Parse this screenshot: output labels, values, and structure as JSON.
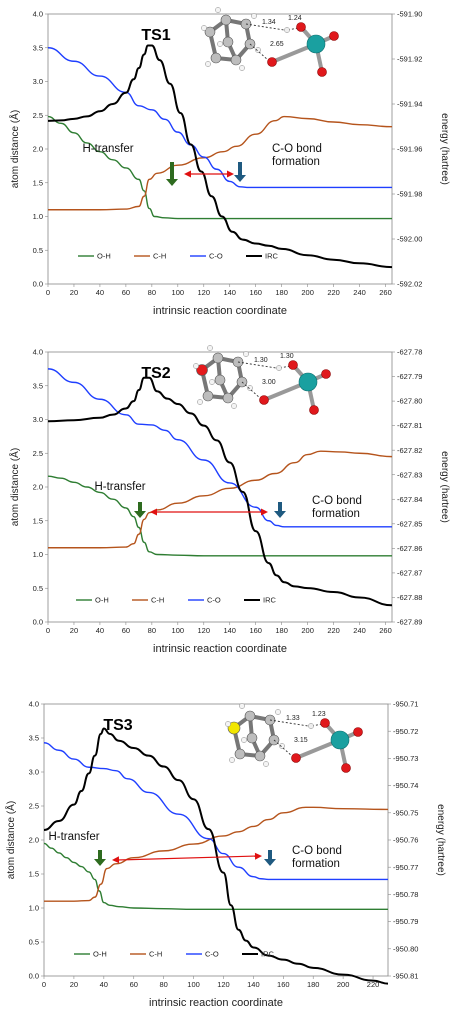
{
  "chart_data": [
    {
      "type": "line",
      "title": "TS1",
      "xlabel": "intrinsic reaction coordinate",
      "ylabel_left": "atom distance (Å)",
      "ylabel_right": "energy (hartree)",
      "xlim": [
        0,
        265
      ],
      "xticks": [
        "0",
        "20",
        "40",
        "60",
        "80",
        "100",
        "120",
        "140",
        "160",
        "180",
        "200",
        "220",
        "240",
        "260"
      ],
      "ylim_left": [
        0.0,
        4.0
      ],
      "yticks_left": [
        "0.0",
        "0.5",
        "1.0",
        "1.5",
        "2.0",
        "2.5",
        "3.0",
        "3.5",
        "4.0"
      ],
      "ylim_right": [
        -592.02,
        -591.9
      ],
      "yticks_right": [
        "-591.90",
        "-591.92",
        "-591.94",
        "-591.96",
        "-591.98",
        "-592.00",
        "-592.02"
      ],
      "annotations": {
        "left": "H-transfer",
        "right_line1": "C-O bond",
        "right_line2": "formation"
      },
      "molecule_labels": [
        "1.34",
        "1.24",
        "2.65"
      ],
      "series": [
        {
          "name": "O-H",
          "color": "#2e7d32",
          "x": [
            0,
            10,
            20,
            30,
            40,
            50,
            60,
            70,
            74,
            78,
            82,
            90,
            100,
            120,
            140,
            160,
            180,
            200,
            220,
            240,
            265
          ],
          "y": [
            2.48,
            2.38,
            2.24,
            2.09,
            1.96,
            1.84,
            1.72,
            1.55,
            1.38,
            1.12,
            1.0,
            0.98,
            0.97,
            0.97,
            0.97,
            0.97,
            0.97,
            0.97,
            0.97,
            0.97,
            0.97
          ]
        },
        {
          "name": "C-H",
          "color": "#b5541c",
          "x": [
            0,
            20,
            40,
            60,
            70,
            74,
            78,
            84,
            100,
            120,
            135,
            145,
            160,
            175,
            182,
            200,
            220,
            240,
            265
          ],
          "y": [
            1.1,
            1.1,
            1.1,
            1.11,
            1.15,
            1.3,
            1.55,
            1.64,
            1.76,
            1.87,
            1.96,
            2.04,
            2.22,
            2.42,
            2.48,
            2.45,
            2.4,
            2.36,
            2.33
          ]
        },
        {
          "name": "C-O",
          "color": "#1f3fff",
          "x": [
            0,
            20,
            40,
            60,
            70,
            80,
            90,
            100,
            110,
            120,
            130,
            140,
            148,
            155,
            160,
            180,
            200,
            220,
            240,
            265
          ],
          "y": [
            3.5,
            3.3,
            3.08,
            2.84,
            2.64,
            2.58,
            2.44,
            2.25,
            2.06,
            1.88,
            1.7,
            1.52,
            1.44,
            1.43,
            1.43,
            1.43,
            1.43,
            1.43,
            1.43,
            1.43
          ]
        },
        {
          "name": "IRC",
          "color": "#000000",
          "axis": "right",
          "x": [
            0,
            10,
            20,
            30,
            40,
            50,
            60,
            66,
            70,
            74,
            77,
            80,
            86,
            94,
            102,
            110,
            118,
            126,
            134,
            142,
            150,
            160,
            170,
            180,
            200,
            220,
            240,
            265
          ],
          "y": [
            -591.9475,
            -591.9473,
            -591.9466,
            -591.9455,
            -591.9432,
            -591.94,
            -591.935,
            -591.929,
            -591.924,
            -591.918,
            -591.914,
            -591.914,
            -591.9205,
            -591.931,
            -591.944,
            -591.958,
            -591.97,
            -591.981,
            -591.99,
            -591.9968,
            -592.0003,
            -592.002,
            -592.003,
            -592.0044,
            -592.0072,
            -592.0092,
            -592.0108,
            -592.0125
          ]
        }
      ]
    },
    {
      "type": "line",
      "title": "TS2",
      "xlabel": "intrinsic reaction coordinate",
      "ylabel_left": "atom distance (Å)",
      "ylabel_right": "energy (hartree)",
      "xlim": [
        0,
        265
      ],
      "xticks": [
        "0",
        "20",
        "40",
        "60",
        "80",
        "100",
        "120",
        "140",
        "160",
        "180",
        "200",
        "220",
        "240",
        "260"
      ],
      "ylim_left": [
        0.0,
        4.0
      ],
      "yticks_left": [
        "0.0",
        "0.5",
        "1.0",
        "1.5",
        "2.0",
        "2.5",
        "3.0",
        "3.5",
        "4.0"
      ],
      "ylim_right": [
        -627.89,
        -627.78
      ],
      "yticks_right": [
        "-627.78",
        "-627.79",
        "-627.80",
        "-627.81",
        "-627.82",
        "-627.83",
        "-627.84",
        "-627.85",
        "-627.86",
        "-627.87",
        "-627.88",
        "-627.89"
      ],
      "annotations": {
        "left": "H-transfer",
        "right_line1": "C-O bond",
        "right_line2": "formation"
      },
      "molecule_labels": [
        "1.30",
        "1.30",
        "3.00"
      ],
      "series": [
        {
          "name": "O-H",
          "color": "#2e7d32",
          "x": [
            0,
            10,
            20,
            30,
            40,
            50,
            60,
            66,
            70,
            74,
            78,
            84,
            100,
            120,
            150,
            180,
            210,
            240,
            265
          ],
          "y": [
            2.16,
            2.13,
            2.07,
            2.0,
            1.92,
            1.82,
            1.69,
            1.56,
            1.4,
            1.18,
            1.04,
            1.0,
            0.99,
            0.98,
            0.98,
            0.98,
            0.98,
            0.98,
            0.98
          ]
        },
        {
          "name": "C-H",
          "color": "#b5541c",
          "x": [
            0,
            20,
            40,
            60,
            66,
            70,
            74,
            78,
            84,
            100,
            120,
            140,
            160,
            175,
            190,
            200,
            210,
            225,
            240,
            265
          ],
          "y": [
            1.1,
            1.1,
            1.1,
            1.11,
            1.16,
            1.3,
            1.52,
            1.62,
            1.66,
            1.76,
            1.87,
            1.98,
            2.1,
            2.2,
            2.36,
            2.48,
            2.53,
            2.52,
            2.5,
            2.45
          ]
        },
        {
          "name": "C-O",
          "color": "#1f3fff",
          "x": [
            0,
            20,
            40,
            60,
            70,
            80,
            90,
            100,
            120,
            140,
            160,
            170,
            176,
            182,
            190,
            200,
            220,
            240,
            265
          ],
          "y": [
            3.75,
            3.55,
            3.3,
            3.07,
            2.93,
            2.92,
            2.84,
            2.7,
            2.4,
            2.06,
            1.7,
            1.5,
            1.43,
            1.41,
            1.41,
            1.41,
            1.41,
            1.41,
            1.41
          ]
        },
        {
          "name": "IRC",
          "color": "#000000",
          "axis": "right",
          "x": [
            0,
            20,
            40,
            50,
            60,
            66,
            70,
            74,
            78,
            84,
            92,
            100,
            110,
            120,
            130,
            140,
            150,
            160,
            170,
            176,
            182,
            190,
            200,
            220,
            240,
            265
          ],
          "y": [
            -627.8082,
            -627.8078,
            -627.8068,
            -627.8055,
            -627.803,
            -627.8,
            -627.7955,
            -627.7905,
            -627.7905,
            -627.796,
            -627.799,
            -627.8012,
            -627.805,
            -627.81,
            -627.816,
            -627.825,
            -627.837,
            -627.853,
            -627.866,
            -627.871,
            -627.8738,
            -627.8755,
            -627.8762,
            -627.8778,
            -627.88,
            -627.8832
          ]
        }
      ]
    },
    {
      "type": "line",
      "title": "TS3",
      "xlabel": "intrinsic reaction coordinate",
      "ylabel_left": "atom distance (Å)",
      "ylabel_right": "energy (hartree)",
      "xlim": [
        0,
        230
      ],
      "xticks": [
        "0",
        "20",
        "40",
        "60",
        "80",
        "100",
        "120",
        "140",
        "160",
        "180",
        "200",
        "220"
      ],
      "ylim_left": [
        0.0,
        4.0
      ],
      "yticks_left": [
        "0.0",
        "0.5",
        "1.0",
        "1.5",
        "2.0",
        "2.5",
        "3.0",
        "3.5",
        "4.0"
      ],
      "ylim_right": [
        -950.81,
        -950.71
      ],
      "yticks_right": [
        "-950.71",
        "-950.72",
        "-950.73",
        "-950.74",
        "-950.75",
        "-950.76",
        "-950.77",
        "-950.78",
        "-950.79",
        "-950.80",
        "-950.81"
      ],
      "annotations": {
        "left": "H-transfer",
        "right_line1": "C-O bond",
        "right_line2": "formation"
      },
      "molecule_labels": [
        "1.33",
        "1.23",
        "3.15"
      ],
      "series": [
        {
          "name": "O-H",
          "color": "#2e7d32",
          "x": [
            0,
            5,
            10,
            15,
            20,
            25,
            30,
            34,
            37,
            40,
            44,
            50,
            60,
            80,
            100,
            120,
            140,
            160,
            180,
            200,
            230
          ],
          "y": [
            1.95,
            1.88,
            1.81,
            1.74,
            1.67,
            1.61,
            1.53,
            1.42,
            1.25,
            1.08,
            1.04,
            1.02,
            1.0,
            0.99,
            0.98,
            0.98,
            0.98,
            0.98,
            0.98,
            0.98,
            0.98
          ]
        },
        {
          "name": "C-H",
          "color": "#b5541c",
          "x": [
            0,
            10,
            20,
            30,
            34,
            38,
            42,
            48,
            60,
            80,
            100,
            120,
            130,
            140,
            150,
            160,
            175,
            180,
            200,
            230
          ],
          "y": [
            1.1,
            1.1,
            1.1,
            1.11,
            1.16,
            1.35,
            1.58,
            1.65,
            1.74,
            1.84,
            1.94,
            2.06,
            2.12,
            2.2,
            2.3,
            2.4,
            2.48,
            2.48,
            2.46,
            2.45
          ]
        },
        {
          "name": "C-O",
          "color": "#1f3fff",
          "x": [
            0,
            10,
            20,
            30,
            40,
            48,
            56,
            70,
            90,
            110,
            120,
            130,
            140,
            145,
            150,
            160,
            180,
            200,
            230
          ],
          "y": [
            3.43,
            3.32,
            3.19,
            3.07,
            3.05,
            3.02,
            2.9,
            2.7,
            2.38,
            2.02,
            1.8,
            1.6,
            1.46,
            1.43,
            1.42,
            1.42,
            1.42,
            1.42,
            1.42
          ]
        },
        {
          "name": "IRC",
          "color": "#000000",
          "axis": "right",
          "x": [
            0,
            10,
            20,
            25,
            30,
            34,
            38,
            40,
            44,
            50,
            60,
            70,
            80,
            90,
            100,
            110,
            120,
            125,
            130,
            135,
            140,
            150,
            160,
            170,
            180,
            200,
            220,
            230
          ],
          "y": [
            -950.7563,
            -950.753,
            -950.747,
            -950.742,
            -950.7355,
            -950.729,
            -950.721,
            -950.719,
            -950.721,
            -950.7235,
            -950.7262,
            -950.729,
            -950.733,
            -950.738,
            -950.745,
            -950.756,
            -950.772,
            -950.784,
            -950.793,
            -950.797,
            -950.7995,
            -950.8025,
            -950.804,
            -950.8055,
            -950.807,
            -950.8095,
            -950.8117,
            -950.8128
          ]
        }
      ]
    }
  ]
}
